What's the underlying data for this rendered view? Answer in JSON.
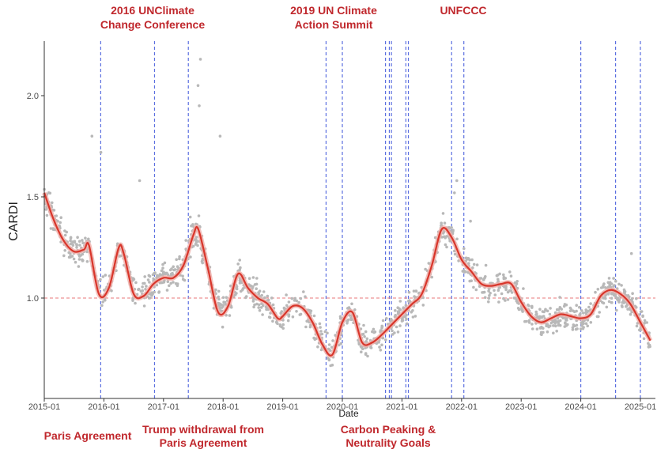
{
  "chart_data": {
    "type": "scatter",
    "title": "",
    "xlabel": "Date",
    "ylabel": "CARDI",
    "xlim": [
      "2015-01",
      "2025-03"
    ],
    "ylim": [
      0.52,
      2.28
    ],
    "x_ticks": [
      "2015-01",
      "2016-01",
      "2017-01",
      "2018-01",
      "2019-01",
      "2020-01",
      "2021-01",
      "2022-01",
      "2023-01",
      "2024-01",
      "2025-01"
    ],
    "y_ticks": [
      1.0,
      1.5,
      2.0
    ],
    "reference_line": {
      "y": 1.0,
      "style": "dashed",
      "color": "#e8777a"
    },
    "grid": false,
    "colors": {
      "points": "#b8b8b8",
      "trend": "#d9362b",
      "band": "#f0b0ab",
      "event_lines": "#5b6fe0",
      "annotations": "#c0282d"
    },
    "event_dates": [
      "2015-12-12",
      "2016-11-07",
      "2017-06-01",
      "2019-09-23",
      "2020-01-01",
      "2020-09-22",
      "2020-10-15",
      "2020-10-28",
      "2021-01-25",
      "2021-02-10",
      "2021-11-01",
      "2022-01-15",
      "2024-01-01",
      "2024-08-01",
      "2025-01-01"
    ],
    "annotations": {
      "top": [
        {
          "lines": [
            "2016 UNClimate",
            "Change Conference"
          ],
          "date": "2016-11-07"
        },
        {
          "lines": [
            "2019 UN Climate",
            "Action Summit"
          ],
          "date": "2019-09-23"
        },
        {
          "lines": [
            "UNFCCC"
          ],
          "date": "2021-11-01"
        }
      ],
      "bottom": [
        {
          "lines": [
            "Paris Agreement"
          ],
          "date": "2015-12-12"
        },
        {
          "lines": [
            "Trump withdrawal from",
            "Paris Agreement"
          ],
          "date": "2017-06-01"
        },
        {
          "lines": [
            "Carbon Peaking &",
            "Neutrality Goals"
          ],
          "date": "2020-09-22"
        }
      ]
    },
    "series": [
      {
        "type": "line",
        "x": [
          "2015-01",
          "2015-03",
          "2015-05",
          "2015-07",
          "2015-09",
          "2015-10",
          "2015-12",
          "2016-02",
          "2016-04",
          "2016-05",
          "2016-07",
          "2016-09",
          "2016-11",
          "2017-01",
          "2017-03",
          "2017-05",
          "2017-07",
          "2017-08",
          "2017-10",
          "2017-12",
          "2018-02",
          "2018-04",
          "2018-06",
          "2018-08",
          "2018-10",
          "2018-12",
          "2019-01",
          "2019-03",
          "2019-05",
          "2019-07",
          "2019-09",
          "2019-11",
          "2020-01",
          "2020-03",
          "2020-05",
          "2020-07",
          "2020-09",
          "2020-11",
          "2021-01",
          "2021-03",
          "2021-05",
          "2021-07",
          "2021-09",
          "2021-11",
          "2022-01",
          "2022-03",
          "2022-05",
          "2022-07",
          "2022-09",
          "2022-11",
          "2023-01",
          "2023-03",
          "2023-05",
          "2023-07",
          "2023-09",
          "2023-11",
          "2024-01",
          "2024-03",
          "2024-05",
          "2024-07",
          "2024-09",
          "2024-11",
          "2025-01",
          "2025-03"
        ],
        "y": [
          1.52,
          1.38,
          1.28,
          1.23,
          1.24,
          1.26,
          1.02,
          1.05,
          1.25,
          1.22,
          1.02,
          1.01,
          1.07,
          1.1,
          1.1,
          1.16,
          1.31,
          1.34,
          1.14,
          0.93,
          0.96,
          1.12,
          1.05,
          1.0,
          0.97,
          0.9,
          0.91,
          0.96,
          0.95,
          0.88,
          0.77,
          0.72,
          0.88,
          0.93,
          0.78,
          0.78,
          0.82,
          0.87,
          0.92,
          0.97,
          1.02,
          1.16,
          1.34,
          1.3,
          1.19,
          1.13,
          1.07,
          1.06,
          1.07,
          1.07,
          0.98,
          0.91,
          0.88,
          0.9,
          0.92,
          0.91,
          0.9,
          0.92,
          1.01,
          1.04,
          1.02,
          0.97,
          0.88,
          0.79
        ]
      },
      {
        "type": "scatter",
        "note_on_points": "daily observations scattered around the trend line; spikes near 2017-08 (up to 2.18), 2015-10 (1.80), 2017-12 (1.80), 2021-12 (1.58)"
      }
    ]
  }
}
